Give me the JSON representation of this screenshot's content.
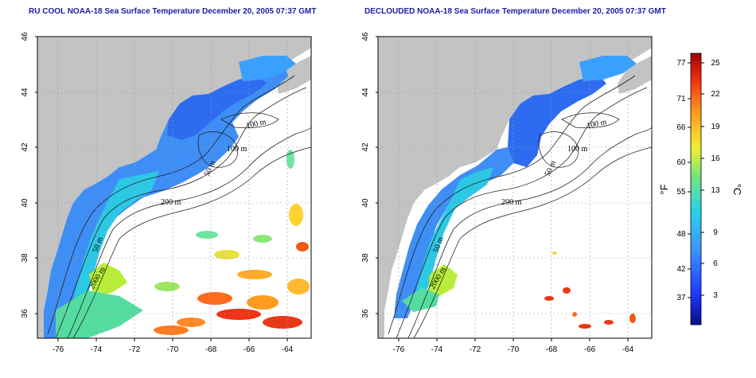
{
  "panels": [
    {
      "title": "RU COOL NOAA-18 Sea Surface Temperature December 20, 2005 07:37 GMT",
      "contour_labels": [
        "100 m",
        "100 m",
        "50 m",
        "200 m",
        "50 m",
        "2000 m"
      ]
    },
    {
      "title": "DECLOUDED NOAA-18 Sea Surface Temperature December 20, 2005 07:37 GMT",
      "contour_labels": [
        "100 m",
        "100 m",
        "50 m",
        "200 m",
        "50 m",
        "2000 m"
      ]
    }
  ],
  "axes": {
    "lat_ticks": [
      "46",
      "44",
      "42",
      "40",
      "38",
      "36"
    ],
    "lon_ticks": [
      "-76",
      "-74",
      "-72",
      "-70",
      "-68",
      "-66",
      "-64"
    ]
  },
  "colorbar": {
    "fahrenheit_ticks": [
      "77",
      "71",
      "66",
      "60",
      "55",
      "48",
      "42",
      "37"
    ],
    "celsius_ticks": [
      "25",
      "22",
      "19",
      "16",
      "13",
      "9",
      "6",
      "3"
    ],
    "fahrenheit_unit": "°F",
    "celsius_unit": "°C",
    "colors": [
      "#0a0a8c",
      "#1e3cff",
      "#3c96ff",
      "#28d2e6",
      "#78e678",
      "#f0f032",
      "#ff9b1e",
      "#f03214",
      "#a00000"
    ]
  },
  "colors": {
    "land": "#c3c3c3",
    "water_background": "#ffffff",
    "title_text": "#1c1ca0"
  }
}
